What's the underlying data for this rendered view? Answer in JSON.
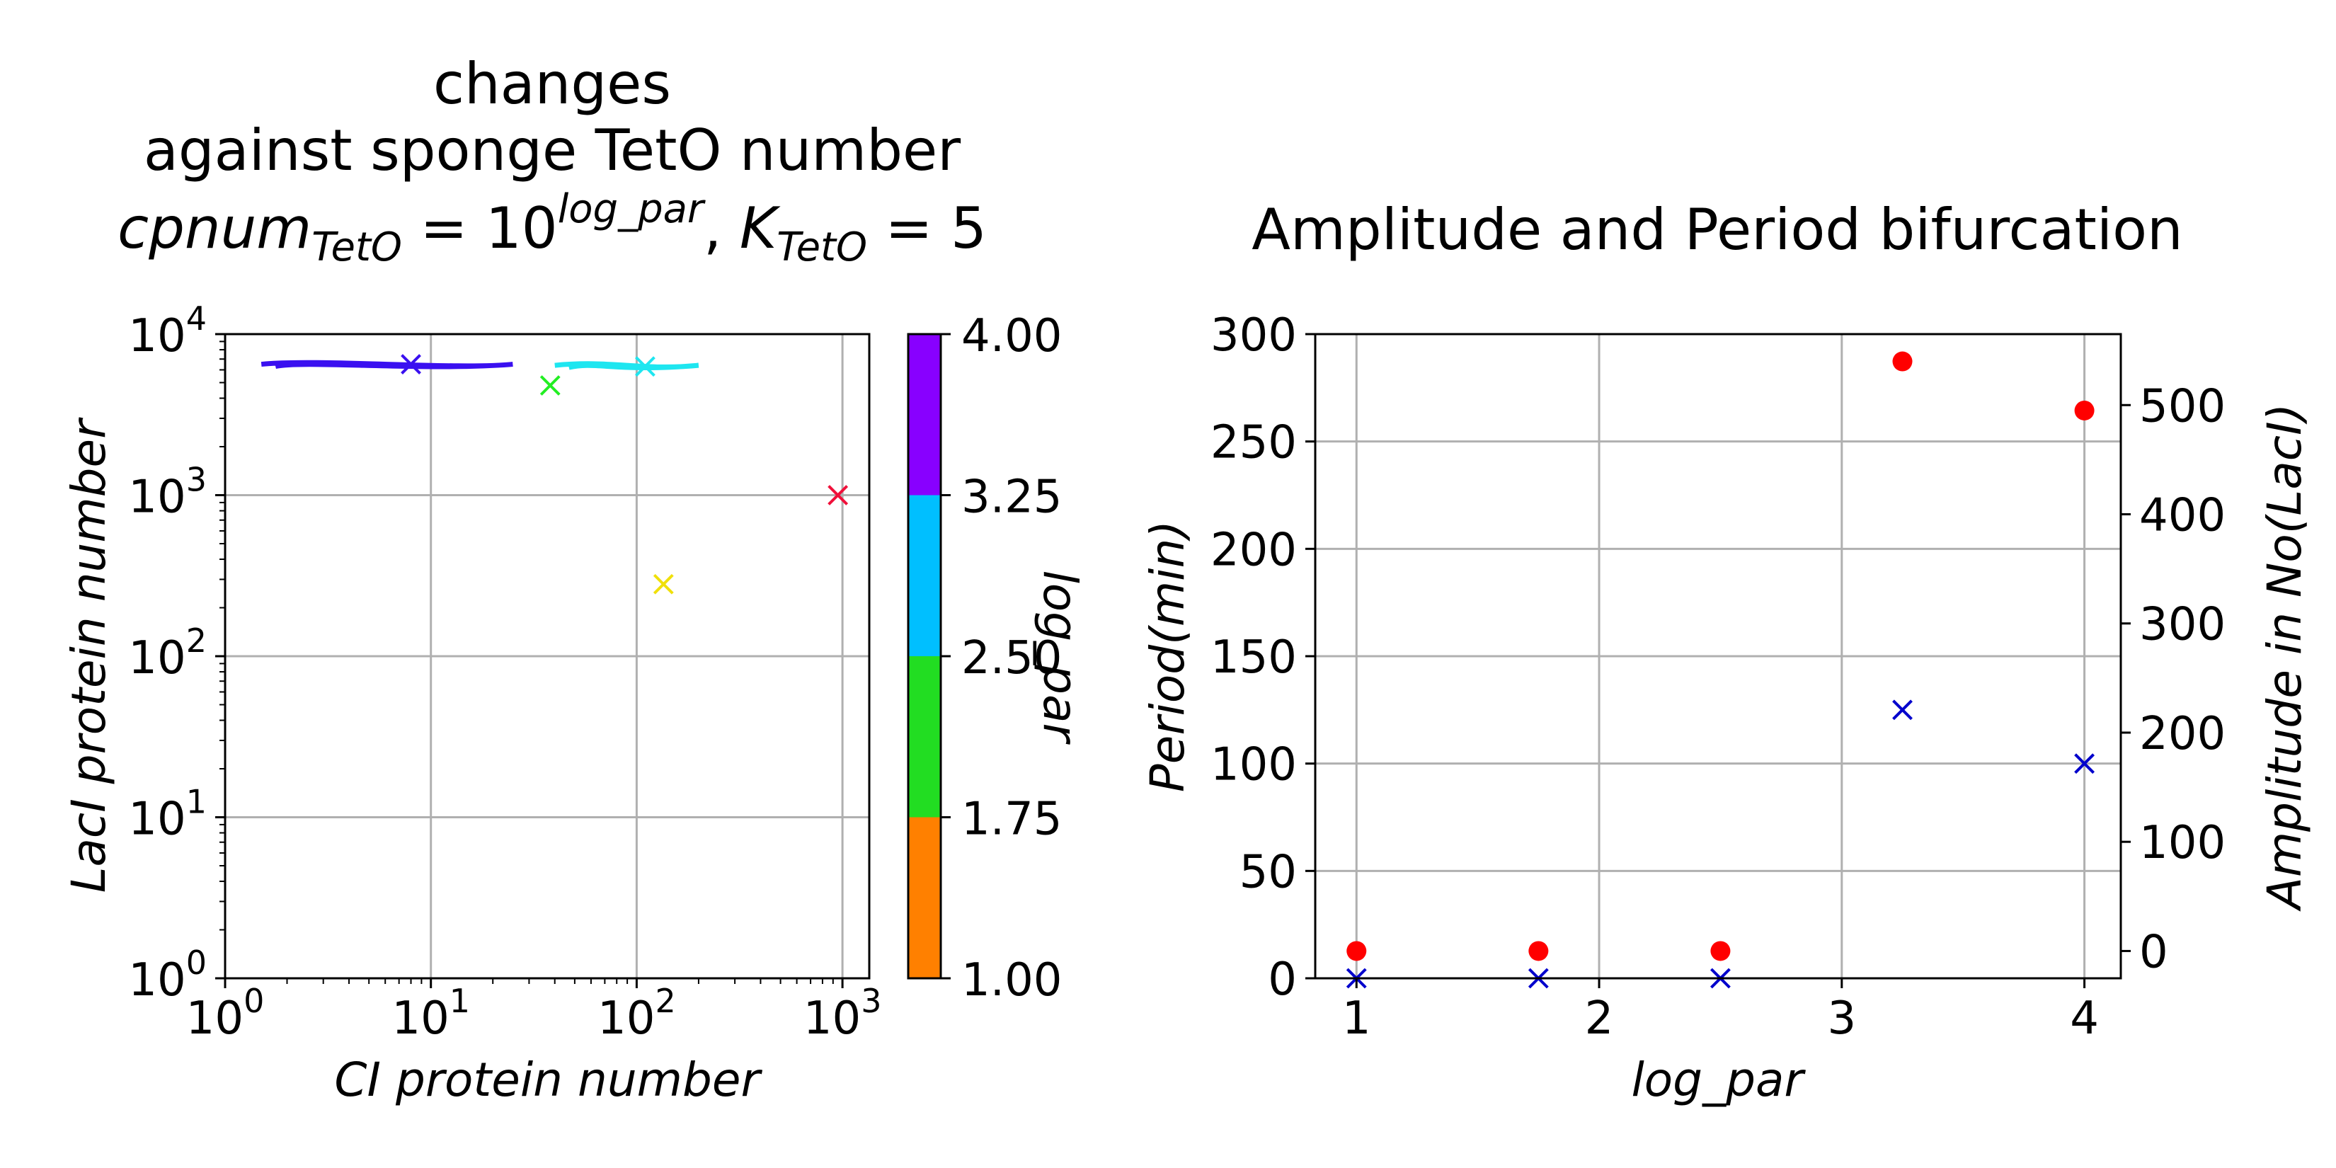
{
  "chart_data": [
    {
      "type": "scatter",
      "title_lines": [
        "changes",
        "against sponge TetO number"
      ],
      "title_math": {
        "a": "cpnum",
        "a_sub": "TetO",
        "b": " = 10",
        "b_sup": "log_par",
        "c": ",  ",
        "d": "K",
        "d_sub": "TetO",
        "e": " = 5"
      },
      "xlabel": "CI protein number",
      "ylabel": "LacI protein number",
      "xscale": "log",
      "yscale": "log",
      "xlim": [
        1,
        1350
      ],
      "ylim": [
        1,
        10000
      ],
      "xticks": [
        {
          "v": 1,
          "b": "10",
          "e": "0"
        },
        {
          "v": 10,
          "b": "10",
          "e": "1"
        },
        {
          "v": 100,
          "b": "10",
          "e": "2"
        },
        {
          "v": 1000,
          "b": "10",
          "e": "3"
        }
      ],
      "yticks": [
        {
          "v": 1,
          "b": "10",
          "e": "0"
        },
        {
          "v": 10,
          "b": "10",
          "e": "1"
        },
        {
          "v": 100,
          "b": "10",
          "e": "2"
        },
        {
          "v": 1000,
          "b": "10",
          "e": "3"
        },
        {
          "v": 10000,
          "b": "10",
          "e": "4"
        }
      ],
      "grid": true,
      "trajectories": [
        {
          "log_par": 4.0,
          "color": "#3a10f0",
          "x_range": [
            1.5,
            25
          ],
          "y": 6500
        },
        {
          "log_par": 3.25,
          "color": "#1ee6f0",
          "x_range": [
            40,
            200
          ],
          "y": 6400
        }
      ],
      "points": [
        {
          "log_par": 4.0,
          "x": 8,
          "y": 6500,
          "color": "#3a10f0"
        },
        {
          "log_par": 3.25,
          "x": 110,
          "y": 6300,
          "color": "#1ee6f0"
        },
        {
          "log_par": 2.5,
          "x": 38,
          "y": 4800,
          "color": "#22ee22"
        },
        {
          "log_par": 1.75,
          "x": 135,
          "y": 280,
          "color": "#f0e00a"
        },
        {
          "log_par": 1.0,
          "x": 950,
          "y": 1000,
          "color": "#f0103a"
        }
      ],
      "colorbar": {
        "label": "log_par",
        "ticks": [
          "1.00",
          "1.75",
          "2.50",
          "3.25",
          "4.00"
        ],
        "colors": [
          "#ff8000",
          "#22dd22",
          "#00bfff",
          "#8800ff"
        ]
      }
    },
    {
      "type": "scatter",
      "title": "Amplitude and Period bifurcation",
      "xlabel": "log_par",
      "ylabel": "Period(min)",
      "ylabel_right": "Amplitude in No(LacI)",
      "xlim": [
        0.83,
        4.15
      ],
      "ylim": [
        0,
        300
      ],
      "ylim_right": [
        -25,
        565
      ],
      "xticks": [
        "1",
        "2",
        "3",
        "4"
      ],
      "yticks": [
        "0",
        "50",
        "100",
        "150",
        "200",
        "250",
        "300"
      ],
      "yticks_right": [
        "0",
        "100",
        "200",
        "300",
        "400",
        "500"
      ],
      "grid": true,
      "period_color": "#0000cc",
      "amplitude_color": "#ff0000",
      "period_series": {
        "name": "Period",
        "x": [
          1.0,
          1.75,
          2.5,
          3.25,
          4.0
        ],
        "values": [
          0,
          0,
          0,
          125,
          100
        ]
      },
      "amplitude_series": {
        "name": "Amplitude",
        "x": [
          1.0,
          1.75,
          2.5,
          3.25,
          4.0
        ],
        "values": [
          0,
          0,
          0,
          540,
          495
        ]
      }
    }
  ]
}
